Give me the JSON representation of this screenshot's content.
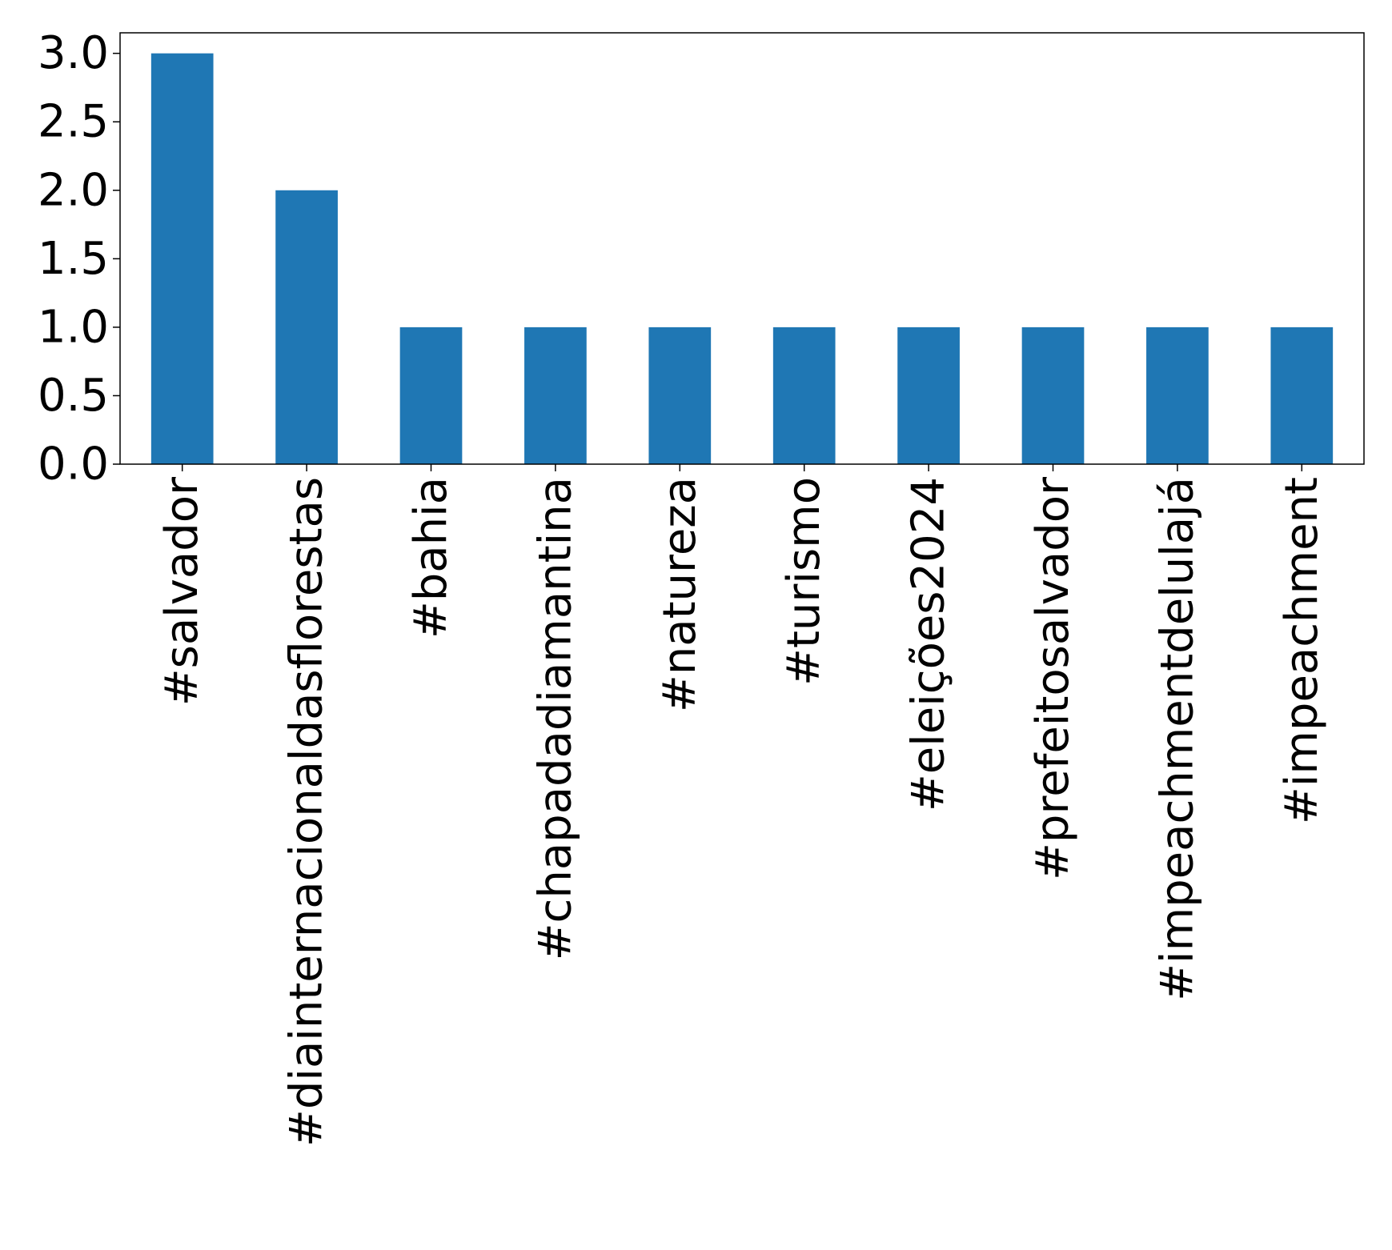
{
  "chart_data": {
    "type": "bar",
    "title": "",
    "xlabel": "",
    "ylabel": "",
    "categories": [
      "#salvador",
      "#diainternacionaldasflorestas",
      "#bahia",
      "#chapadadiamantina",
      "#natureza",
      "#turismo",
      "#eleições2024",
      "#prefeitosalvador",
      "#impeachmentdelulajá",
      "#impeachment"
    ],
    "values": [
      3,
      2,
      1,
      1,
      1,
      1,
      1,
      1,
      1,
      1
    ],
    "ylim": [
      0,
      3.15
    ],
    "yticks": [
      "0.0",
      "0.5",
      "1.0",
      "1.5",
      "2.0",
      "2.5",
      "3.0"
    ],
    "grid": false,
    "legend": "none",
    "bar_color": "#1f77b4"
  }
}
